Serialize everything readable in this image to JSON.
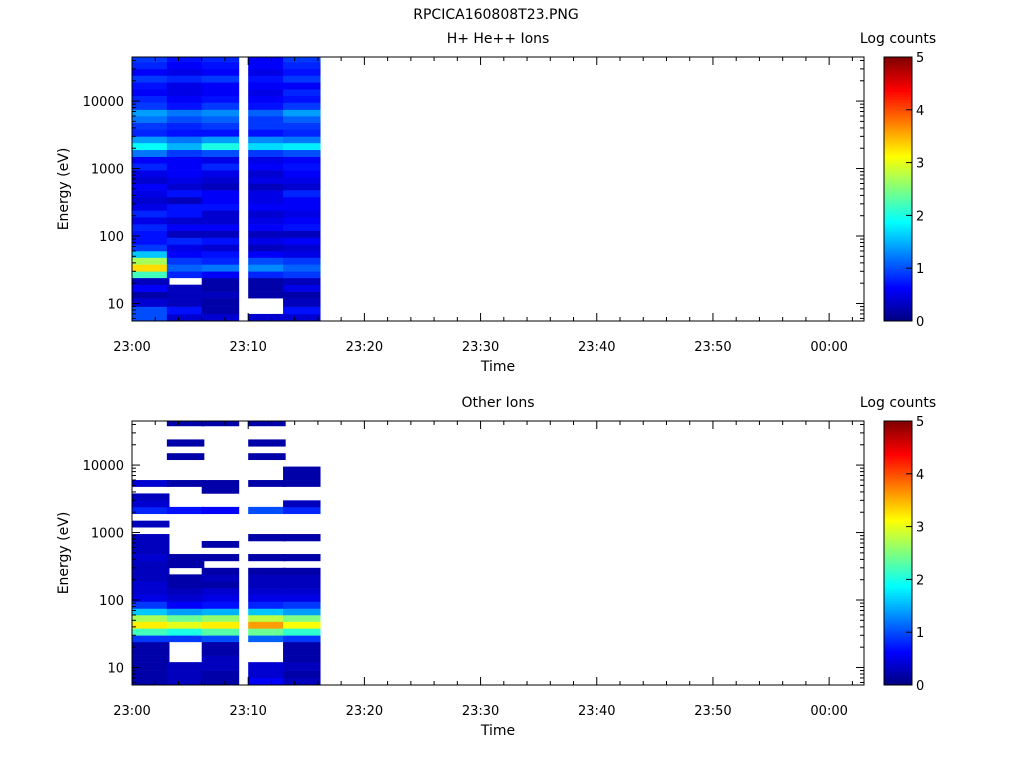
{
  "figure_title": "RPCICA160808T23.PNG",
  "colorbar_ticks": [
    "0",
    "1",
    "2",
    "3",
    "4",
    "5"
  ],
  "chart_data": [
    {
      "type": "heatmap",
      "title": "H+ He++ Ions",
      "xlabel": "Time",
      "ylabel": "Energy (eV)",
      "colorbar_label": "Log counts",
      "colorbar_range": [
        0,
        5
      ],
      "y_scale": "log",
      "ylim": [
        5.5,
        45000
      ],
      "xlim": [
        "23:00",
        "00:03"
      ],
      "x_ticks": [
        "23:00",
        "23:10",
        "23:20",
        "23:30",
        "23:40",
        "23:50",
        "00:00"
      ],
      "y_ticks": [
        "10",
        "100",
        "1000",
        "10000"
      ],
      "time_bins": [
        "23:00",
        "23:03",
        "23:06",
        "23:10",
        "23:13"
      ],
      "bin_duration_minutes": 3.2,
      "energy_edges": [
        5.5,
        7,
        9,
        12,
        15,
        19,
        24,
        30,
        38,
        48,
        60,
        75,
        95,
        120,
        150,
        190,
        240,
        300,
        380,
        480,
        600,
        750,
        950,
        1200,
        1500,
        1900,
        2400,
        3000,
        3800,
        4800,
        6000,
        7500,
        9500,
        12000,
        15000,
        19000,
        24000,
        30000,
        38000,
        45000
      ],
      "log_counts": [
        [
          1.0,
          0.4,
          0.4,
          0.4,
          0.4
        ],
        [
          1.0,
          0.7,
          0.2,
          null,
          0.7
        ],
        [
          0.4,
          0.3,
          0.2,
          null,
          0.3
        ],
        [
          0.2,
          0.3,
          0.3,
          0.2,
          0.2
        ],
        [
          0.6,
          0.3,
          0.2,
          0.2,
          0.5
        ],
        [
          0.3,
          null,
          0.2,
          0.2,
          0.3
        ],
        [
          2.2,
          0.8,
          0.6,
          0.8,
          0.9
        ],
        [
          3.3,
          1.1,
          1.2,
          1.3,
          1.1
        ],
        [
          2.7,
          0.9,
          0.8,
          1.0,
          0.9
        ],
        [
          1.6,
          0.6,
          0.7,
          0.6,
          0.5
        ],
        [
          0.9,
          0.5,
          0.4,
          0.3,
          0.4
        ],
        [
          0.7,
          0.8,
          0.7,
          0.5,
          0.6
        ],
        [
          0.7,
          0.3,
          0.3,
          0.3,
          0.3
        ],
        [
          0.8,
          0.6,
          0.6,
          0.6,
          0.7
        ],
        [
          0.5,
          0.4,
          0.4,
          0.5,
          0.6
        ],
        [
          0.8,
          0.7,
          0.4,
          0.4,
          0.5
        ],
        [
          0.5,
          0.7,
          0.7,
          0.6,
          0.6
        ],
        [
          0.4,
          0.3,
          0.6,
          0.5,
          0.6
        ],
        [
          0.5,
          0.7,
          0.6,
          0.5,
          0.8
        ],
        [
          0.6,
          0.4,
          0.3,
          0.3,
          0.4
        ],
        [
          0.4,
          0.5,
          0.4,
          0.5,
          0.5
        ],
        [
          0.5,
          0.6,
          0.5,
          0.4,
          0.6
        ],
        [
          0.8,
          0.6,
          0.8,
          0.6,
          0.7
        ],
        [
          0.6,
          0.6,
          0.5,
          0.5,
          0.6
        ],
        [
          1.2,
          0.9,
          1.0,
          0.9,
          1.0
        ],
        [
          1.9,
          1.5,
          2.0,
          1.7,
          1.8
        ],
        [
          1.4,
          1.2,
          1.4,
          1.3,
          1.2
        ],
        [
          0.8,
          0.7,
          0.7,
          0.7,
          0.8
        ],
        [
          0.9,
          0.8,
          0.9,
          0.9,
          0.9
        ],
        [
          1.2,
          1.0,
          1.1,
          0.9,
          1.1
        ],
        [
          1.4,
          1.2,
          1.3,
          1.1,
          1.4
        ],
        [
          0.9,
          0.7,
          0.9,
          0.7,
          0.9
        ],
        [
          0.8,
          0.6,
          0.7,
          0.6,
          0.7
        ],
        [
          0.6,
          0.5,
          0.6,
          0.5,
          0.8
        ],
        [
          0.7,
          0.5,
          0.6,
          0.6,
          0.6
        ],
        [
          0.9,
          0.8,
          0.9,
          0.7,
          0.9
        ],
        [
          0.6,
          0.5,
          0.6,
          0.5,
          0.7
        ],
        [
          0.8,
          0.6,
          0.7,
          0.6,
          0.8
        ],
        [
          0.9,
          0.7,
          0.8,
          0.6,
          0.9
        ]
      ]
    },
    {
      "type": "heatmap",
      "title": "Other Ions",
      "xlabel": "Time",
      "ylabel": "Energy (eV)",
      "colorbar_label": "Log counts",
      "colorbar_range": [
        0,
        5
      ],
      "y_scale": "log",
      "ylim": [
        5.5,
        45000
      ],
      "xlim": [
        "23:00",
        "00:03"
      ],
      "x_ticks": [
        "23:00",
        "23:10",
        "23:20",
        "23:30",
        "23:40",
        "23:50",
        "00:00"
      ],
      "y_ticks": [
        "10",
        "100",
        "1000",
        "10000"
      ],
      "time_bins": [
        "23:00",
        "23:03",
        "23:06",
        "23:10",
        "23:13"
      ],
      "bin_duration_minutes": 3.2,
      "energy_edges": [
        5.5,
        7,
        9,
        12,
        15,
        19,
        24,
        30,
        38,
        48,
        60,
        75,
        95,
        120,
        150,
        190,
        240,
        300,
        380,
        480,
        600,
        750,
        950,
        1200,
        1500,
        1900,
        2400,
        3000,
        3800,
        4800,
        6000,
        7500,
        9500,
        12000,
        15000,
        19000,
        24000,
        30000,
        38000,
        45000
      ],
      "log_counts": [
        [
          0.2,
          0.3,
          0.2,
          0.6,
          0.3
        ],
        [
          0.2,
          0.3,
          0.2,
          0.4,
          0.2
        ],
        [
          0.2,
          0.3,
          0.3,
          0.4,
          0.3
        ],
        [
          0.2,
          null,
          0.3,
          null,
          0.2
        ],
        [
          0.2,
          null,
          0.2,
          null,
          0.2
        ],
        [
          0.2,
          null,
          0.2,
          null,
          0.2
        ],
        [
          0.9,
          0.9,
          1.0,
          1.1,
          0.9
        ],
        [
          2.2,
          2.0,
          2.3,
          2.4,
          2.1
        ],
        [
          3.2,
          3.0,
          3.2,
          3.6,
          3.1
        ],
        [
          2.7,
          2.4,
          2.6,
          2.8,
          2.5
        ],
        [
          1.6,
          1.4,
          1.5,
          1.6,
          1.4
        ],
        [
          0.9,
          0.6,
          0.7,
          0.8,
          0.9
        ],
        [
          0.5,
          0.4,
          0.5,
          0.5,
          0.5
        ],
        [
          0.4,
          0.3,
          0.4,
          0.4,
          0.4
        ],
        [
          0.4,
          0.2,
          0.2,
          0.3,
          0.3
        ],
        [
          0.3,
          0.2,
          0.3,
          0.3,
          0.3
        ],
        [
          0.3,
          null,
          0.2,
          0.2,
          0.2
        ],
        [
          0.3,
          0.2,
          null,
          null,
          null
        ],
        [
          0.4,
          0.2,
          0.2,
          0.2,
          0.2
        ],
        [
          0.3,
          null,
          null,
          null,
          null
        ],
        [
          0.3,
          null,
          0.2,
          null,
          null
        ],
        [
          0.3,
          null,
          null,
          0.2,
          0.2
        ],
        [
          null,
          null,
          null,
          null,
          null
        ],
        [
          0.3,
          null,
          null,
          null,
          null
        ],
        [
          null,
          null,
          null,
          null,
          null
        ],
        [
          0.8,
          0.7,
          0.6,
          1.0,
          0.8
        ],
        [
          0.4,
          null,
          null,
          null,
          0.3
        ],
        [
          0.3,
          null,
          null,
          null,
          null
        ],
        [
          null,
          null,
          0.2,
          null,
          null
        ],
        [
          0.4,
          0.2,
          0.2,
          0.2,
          0.2
        ],
        [
          null,
          null,
          null,
          null,
          0.2
        ],
        [
          null,
          null,
          null,
          null,
          0.2
        ],
        [
          null,
          null,
          null,
          null,
          null
        ],
        [
          null,
          0.2,
          null,
          0.2,
          null
        ],
        [
          null,
          null,
          null,
          null,
          null
        ],
        [
          null,
          0.2,
          null,
          0.2,
          null
        ],
        [
          null,
          null,
          null,
          null,
          null
        ],
        [
          null,
          null,
          null,
          null,
          null
        ],
        [
          null,
          0.2,
          0.2,
          0.2,
          null
        ]
      ]
    }
  ]
}
